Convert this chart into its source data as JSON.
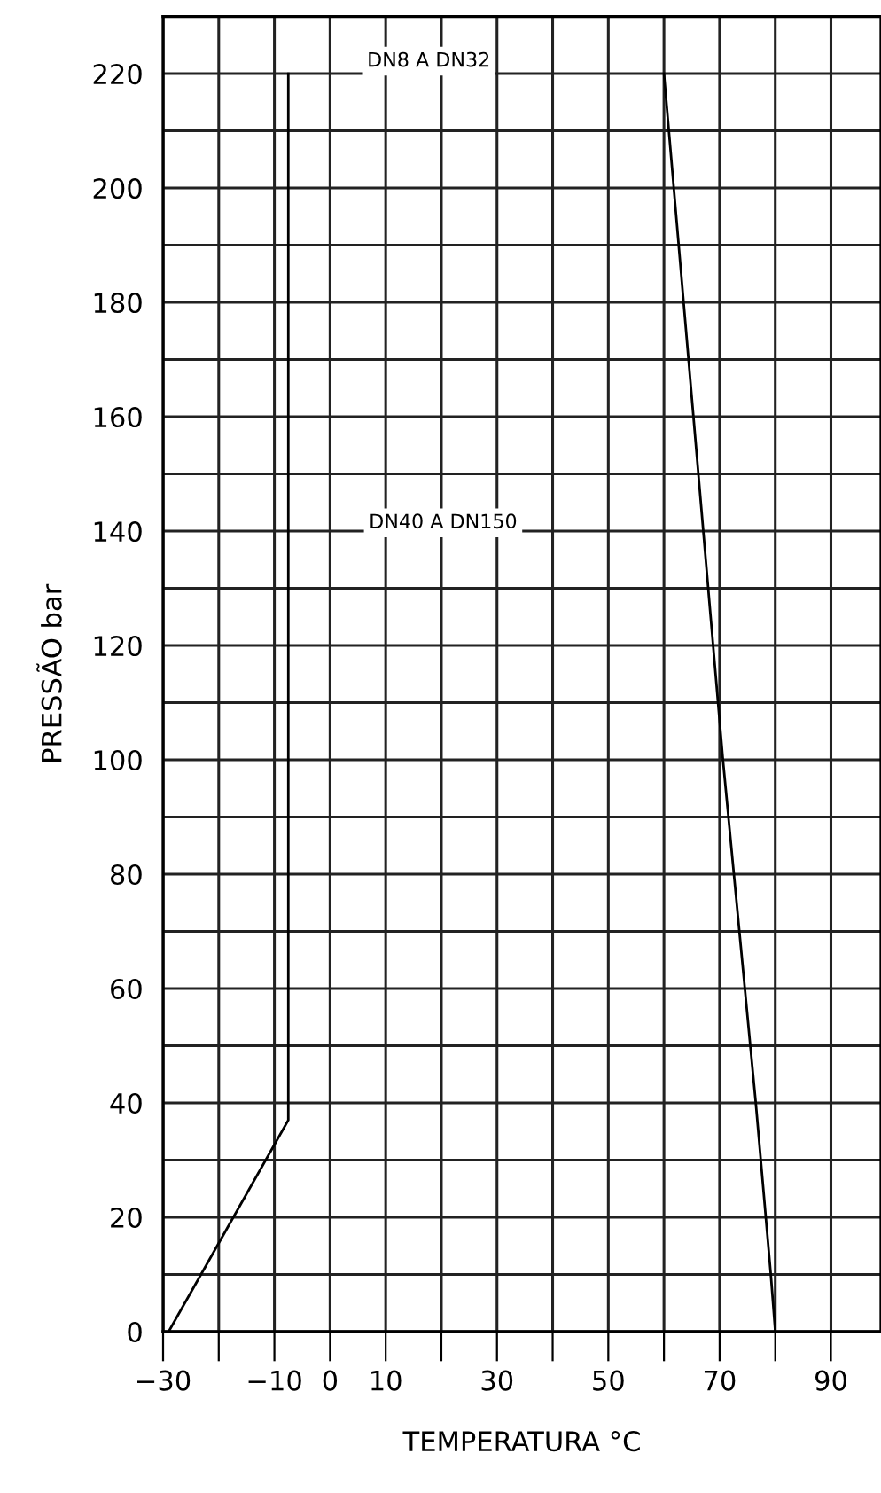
{
  "chart_data": {
    "type": "line",
    "xlabel": "TEMPERATURA °C",
    "ylabel": "PRESSÃO bar",
    "series": [
      {
        "color": "#000000",
        "x": [
          -29,
          -7.5,
          -7.5
        ],
        "values": [
          0,
          37,
          220
        ]
      },
      {
        "color": "#000000",
        "x": [
          60,
          65.3,
          70.6,
          76.5,
          79.2,
          80
        ],
        "values": [
          220,
          160,
          100,
          40,
          10,
          0
        ]
      }
    ],
    "annotations": [
      "DN8 A DN32",
      "DN40 A DN150"
    ],
    "xlim": [
      -30,
      99
    ],
    "ylim": [
      0,
      230
    ],
    "xticks": [
      -30,
      {
        "value": -20,
        "label": null
      },
      -10,
      0,
      10,
      {
        "value": 20,
        "label": null
      },
      30,
      {
        "value": 40,
        "label": null
      },
      50,
      {
        "value": 60,
        "label": null
      },
      70,
      {
        "value": 80,
        "label": null
      },
      90
    ],
    "yticks": [
      0,
      {
        "value": 10,
        "label": null
      },
      20,
      {
        "value": 30,
        "label": null
      },
      40,
      {
        "value": 50,
        "label": null
      },
      60,
      {
        "value": 70,
        "label": null
      },
      80,
      {
        "value": 90,
        "label": null
      },
      100,
      {
        "value": 110,
        "label": null
      },
      120,
      {
        "value": 130,
        "label": null
      },
      140,
      {
        "value": 150,
        "label": null
      },
      160,
      {
        "value": 170,
        "label": null
      },
      180,
      {
        "value": 190,
        "label": null
      },
      200,
      {
        "value": 210,
        "label": null
      },
      220
    ],
    "grid": true,
    "legend": false,
    "marker": "none",
    "line_style": "solid"
  }
}
